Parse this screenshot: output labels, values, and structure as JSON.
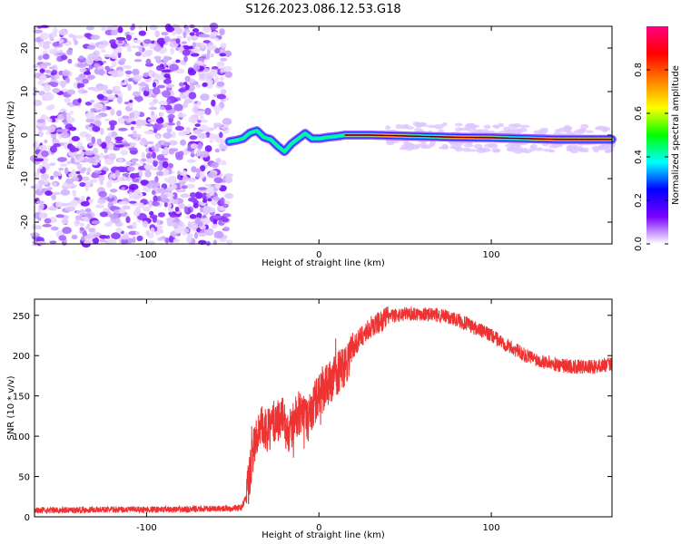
{
  "title": "S126.2023.086.12.53.G18",
  "chart_data": [
    {
      "type": "heatmap",
      "name": "spectrogram",
      "xlabel": "Height of straight line (km)",
      "ylabel": "Frequency (Hz)",
      "xlim": [
        -165,
        170
      ],
      "ylim": [
        -25,
        25
      ],
      "xticks": [
        -100,
        0,
        100
      ],
      "yticks": [
        -20,
        -10,
        0,
        10,
        20
      ],
      "noise_region_x": [
        -165,
        -52
      ],
      "signal_track": {
        "x": [
          -52,
          -48,
          -44,
          -40,
          -36,
          -32,
          -28,
          -24,
          -20,
          -16,
          -12,
          -8,
          -4,
          0,
          5,
          10,
          15,
          30,
          50,
          80,
          100,
          120,
          140,
          160,
          170
        ],
        "freq": [
          -1.5,
          -1.2,
          -0.8,
          0.5,
          1.0,
          -0.5,
          -1.0,
          -2.5,
          -3.8,
          -2.0,
          -0.8,
          0.4,
          -0.8,
          -0.8,
          -0.5,
          -0.3,
          0.0,
          0.0,
          -0.2,
          -0.5,
          -0.6,
          -0.8,
          -1.0,
          -1.0,
          -1.0
        ]
      },
      "strong_segment_x": [
        15,
        170
      ],
      "colorbar": {
        "label": "Normalized spectral amplitude",
        "ticks": [
          0.0,
          0.2,
          0.4,
          0.6,
          0.8
        ],
        "range": [
          0,
          1
        ],
        "colors": [
          "#ffffff",
          "#7a00ff",
          "#0000ff",
          "#00ffff",
          "#00ff00",
          "#ffff00",
          "#ff8000",
          "#ff0000",
          "#ff0080"
        ]
      }
    },
    {
      "type": "line",
      "name": "snr",
      "xlabel": "Height of straight line (km)",
      "ylabel": "SNR (10 * v/v)",
      "xlim": [
        -165,
        170
      ],
      "ylim": [
        0,
        270
      ],
      "xticks": [
        -100,
        0,
        100
      ],
      "yticks": [
        0,
        50,
        100,
        150,
        200,
        250
      ],
      "color": "#ee3333",
      "series": [
        {
          "x": [
            -165,
            -120,
            -80,
            -60,
            -45,
            -42,
            -40,
            -38,
            -36,
            -33,
            -30,
            -27,
            -24,
            -21,
            -18,
            -15,
            -12,
            -9,
            -6,
            -3,
            0,
            5,
            10,
            15,
            20,
            25,
            30,
            40,
            50,
            60,
            70,
            80,
            90,
            100,
            110,
            120,
            130,
            140,
            150,
            160,
            170
          ],
          "values": [
            8,
            9,
            9,
            10,
            11,
            25,
            55,
            80,
            100,
            110,
            105,
            115,
            120,
            125,
            100,
            115,
            130,
            125,
            120,
            140,
            150,
            165,
            175,
            190,
            210,
            225,
            235,
            248,
            252,
            252,
            250,
            245,
            235,
            225,
            212,
            200,
            193,
            188,
            186,
            186,
            190
          ]
        }
      ]
    }
  ]
}
